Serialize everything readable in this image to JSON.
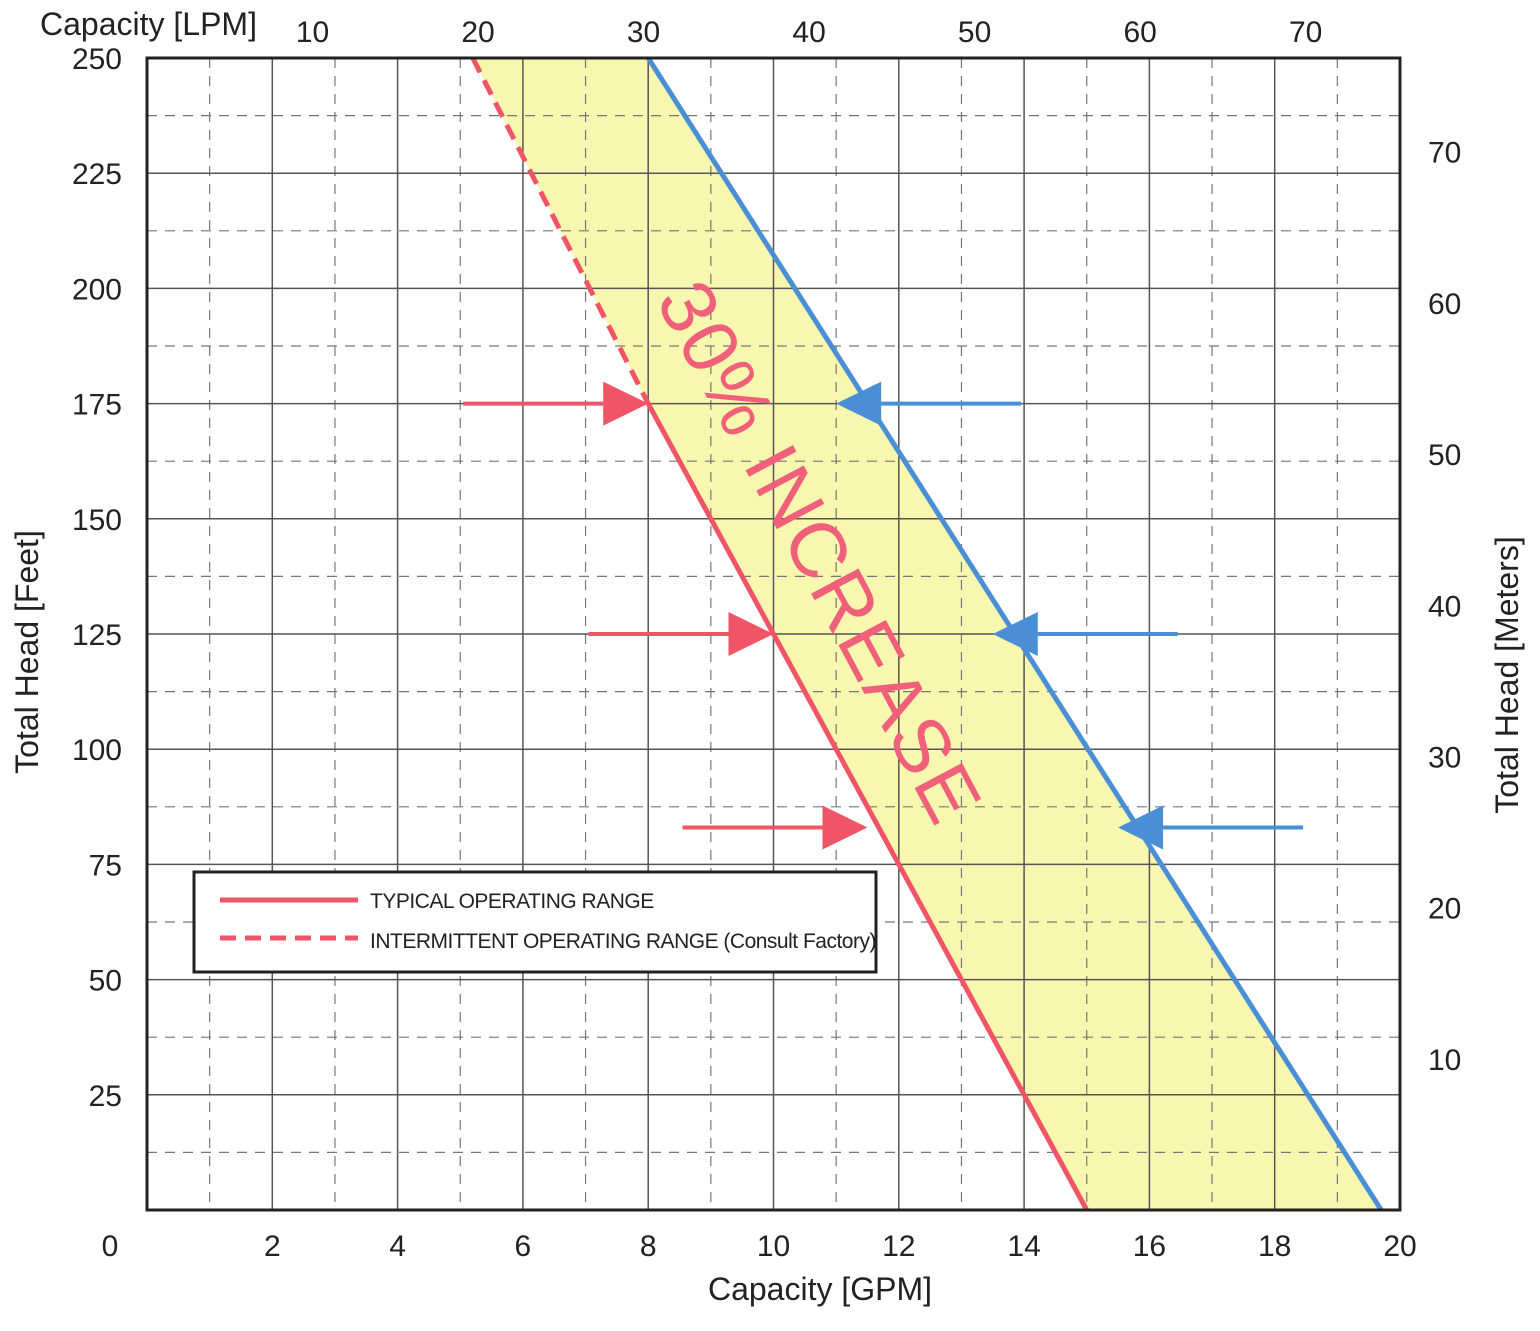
{
  "chart_data": {
    "type": "line",
    "x_bottom": {
      "label": "Capacity [GPM]",
      "range": [
        0,
        20
      ],
      "ticks": [
        "0",
        "2",
        "4",
        "6",
        "8",
        "10",
        "12",
        "14",
        "16",
        "18",
        "20"
      ]
    },
    "x_top": {
      "label": "Capacity [LPM]",
      "ticks": [
        "10",
        "20",
        "30",
        "40",
        "50",
        "60",
        "70"
      ]
    },
    "y_left": {
      "label": "Total Head [Feet]",
      "range": [
        0,
        250
      ],
      "ticks": [
        "25",
        "50",
        "75",
        "100",
        "125",
        "150",
        "175",
        "200",
        "225",
        "250"
      ]
    },
    "y_right": {
      "label": "Total Head [Meters]",
      "ticks": [
        "10",
        "20",
        "30",
        "40",
        "50",
        "60",
        "70"
      ]
    },
    "grid": true,
    "series": [
      {
        "name": "TYPICAL OPERATING RANGE",
        "color": "#ef5566",
        "style": "solid",
        "x": [
          8,
          15
        ],
        "y": [
          175,
          0
        ]
      },
      {
        "name": "INTERMITTENT OPERATING RANGE (Consult Factory)",
        "color": "#ef5566",
        "style": "dashed",
        "x": [
          5.2,
          8
        ],
        "y": [
          250,
          175
        ]
      },
      {
        "color": "#4a8fd6",
        "style": "solid",
        "x": [
          8,
          19.7
        ],
        "y": [
          250,
          0
        ]
      }
    ],
    "shaded_band": {
      "color": "#f8f7b0"
    },
    "arrows": [
      {
        "color": "#ef5566",
        "y": 175,
        "x_to": 8
      },
      {
        "color": "#ef5566",
        "y": 125,
        "x_to": 10
      },
      {
        "color": "#ef5566",
        "y": 83,
        "x_to": 11.5
      },
      {
        "color": "#4a8fd6",
        "y": 175,
        "x_to": 11
      },
      {
        "color": "#4a8fd6",
        "y": 125,
        "x_to": 13.5
      },
      {
        "color": "#4a8fd6",
        "y": 83,
        "x_to": 15.5
      }
    ],
    "annotation": "30% INCREASE",
    "legend": {
      "placement": "bottom-left",
      "entries": [
        {
          "label": "TYPICAL OPERATING RANGE",
          "style": "solid",
          "color": "#ef5566"
        },
        {
          "label": "INTERMITTENT OPERATING RANGE (Consult Factory)",
          "style": "dashed",
          "color": "#ef5566"
        }
      ]
    }
  }
}
